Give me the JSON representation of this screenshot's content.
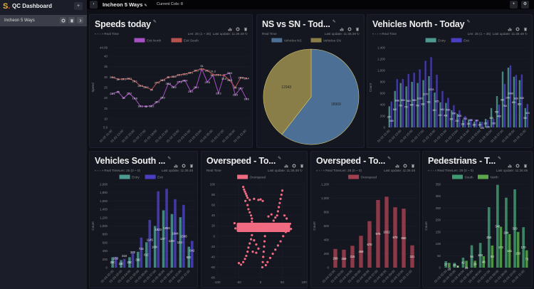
{
  "app": {
    "logo": "S.",
    "title": "QC Dashboard",
    "add": "+"
  },
  "sidebar": {
    "items": [
      {
        "label": "Incheon 5 Ways"
      }
    ]
  },
  "topbar": {
    "title": "Incheon 5 Ways",
    "cols": "Current Cols: 8",
    "back": "‹",
    "add": "+",
    "settings": "⚙"
  },
  "panels": [
    {
      "id": "p0",
      "title": "Speeds today",
      "nav": "«  ‹  ›  »  Real Time",
      "len": "Len: 25 (1 ~ 25)",
      "update": "Last update: 11:26:48 ↻"
    },
    {
      "id": "p1",
      "title": "NS vs SN - Tod...",
      "nav": "Real Time",
      "len": "",
      "update": "Last update: 11:26:48 ↻"
    },
    {
      "id": "p2",
      "title": "Vehicles North - Today",
      "nav": "«  ‹  ›  »  Real Time",
      "len": "Len: 25 (1 ~ 25)",
      "update": "Last update: 11:26:48 ↻"
    },
    {
      "id": "p3",
      "title": "Vehicles South ...",
      "nav": "«  ‹  ›  »  Real TimeLen: 25 (0 ~ 0)",
      "len": "",
      "update": "Last update: 11:26:48"
    },
    {
      "id": "p4",
      "title": "Overspeed - To...",
      "nav": "Real Time",
      "len": "",
      "update": "Last update: 11:26:48 ↻"
    },
    {
      "id": "p5",
      "title": "Overspeed - To...",
      "nav": "«  ‹  ›  »  Real TimeLen: 25 (0 ~ 0)",
      "len": "",
      "update": "Last update: 11:26:48"
    },
    {
      "id": "p6",
      "title": "Pedestrians - T...",
      "nav": "«  ‹  ›  »  Real TimeLen: 25 (0 ~ 0)",
      "len": "",
      "update": "Last update: 11:26:48"
    }
  ],
  "chart_data": [
    {
      "type": "line",
      "ylabel": "Speed",
      "yticks": [
        5.9,
        10,
        15,
        20,
        25,
        30,
        35,
        40,
        44.09
      ],
      "ylim": [
        5.9,
        44.09
      ],
      "xlabels": [
        "01-02 11:00",
        "01-02 13:00",
        "01-02 15:00",
        "01-02 17:00",
        "01-02 19:00",
        "01-02 21:00",
        "01-02 23:00",
        "01-03 01:00",
        "01-03 03:00",
        "01-03 05:00",
        "01-03 07:00",
        "01-03 09:00",
        "01-03 11:00"
      ],
      "series": [
        {
          "name": "Exit North",
          "color": "#a650c2",
          "values": [
            22.1,
            23.0,
            20.0,
            22.2,
            19.8,
            16.1,
            16.0,
            16.2,
            18.1,
            20.2,
            26.9,
            25.2,
            27.8,
            28.4,
            23.2,
            25.1,
            33.9,
            27.6,
            30.9,
            22.3,
            31.0,
            31.9,
            21.5,
            24.7,
            19.6
          ]
        },
        {
          "name": "Exit South",
          "color": "#b8524f",
          "values": [
            29.9,
            29.0,
            29.1,
            29.3,
            28.1,
            25.9,
            25.2,
            24.0,
            27.4,
            28.5,
            30.0,
            30.2,
            31.1,
            31.5,
            32.1,
            33.2,
            34.0,
            33.1,
            31.3,
            31.1,
            30.8,
            28.5,
            25.0,
            29.8,
            29.4
          ]
        }
      ]
    },
    {
      "type": "pie",
      "labels": [
        "Vehicles NS",
        "Vehicles SN"
      ],
      "values": [
        18909,
        12343
      ],
      "colors": [
        "#4b6f95",
        "#8a7e48"
      ]
    },
    {
      "type": "bar",
      "ylabel": "Count",
      "yticks": [
        0,
        200,
        400,
        600,
        800,
        1000,
        1200,
        1400
      ],
      "ylim": [
        0,
        1400
      ],
      "xlabels": [
        "01-02 11:00",
        "01-02 13:00",
        "01-02 15:00",
        "01-02 17:00",
        "01-02 19:00",
        "01-02 21:00",
        "01-02 23:00",
        "01-03 01:00",
        "01-03 03:00",
        "01-03 05:00",
        "01-03 07:00",
        "01-03 09:00",
        "01-03 11:00"
      ],
      "series": [
        {
          "name": "Entry",
          "color": "#4f9a90",
          "values": [
            370,
            640,
            780,
            720,
            800,
            780,
            830,
            900,
            611,
            441,
            430,
            300,
            240,
            130,
            140,
            100,
            100,
            150,
            340,
            550,
            980,
            1050,
            890,
            830,
            340
          ]
        },
        {
          "name": "Exit",
          "color": "#4a3fc0",
          "values": [
            455,
            848,
            850,
            940,
            960,
            1020,
            1170,
            1233,
            925,
            641,
            520,
            390,
            300,
            200,
            150,
            140,
            100,
            130,
            150,
            400,
            764,
            1090,
            920,
            930,
            410
          ]
        }
      ]
    },
    {
      "type": "bar",
      "ylabel": "Count",
      "yticks": [
        0,
        200,
        400,
        600,
        800,
        1000,
        1200,
        1400,
        1600,
        1800,
        2000
      ],
      "ylim": [
        0,
        2000
      ],
      "xlabels": [
        "01-03 02:00",
        "01-03 03:00",
        "01-03 04:00",
        "01-03 05:00",
        "01-03 06:00",
        "01-03 07:00",
        "01-03 08:00",
        "01-03 09:00",
        "01-03 10:00",
        "01-03 11:00"
      ],
      "series": [
        {
          "name": "Entry",
          "color": "#4f9a90",
          "values": [
            250,
            180,
            250,
            380,
            610,
            1000,
            1377,
            1288,
            1210,
            503
          ]
        },
        {
          "name": "Exit",
          "color": "#4a3fc0",
          "values": [
            260,
            210,
            370,
            722,
            1145,
            1833,
            1893,
            1644,
            1508,
            642
          ]
        }
      ]
    },
    {
      "type": "scatter",
      "xticks": [
        -100,
        -50,
        0,
        50,
        100
      ],
      "yticks": [
        -80,
        -60,
        -40,
        -20,
        0,
        20,
        40,
        60,
        80,
        100
      ],
      "xlim": [
        -100,
        100
      ],
      "ylim": [
        -80,
        100
      ],
      "series": [
        {
          "name": "Overspeed",
          "color": "#f06b82",
          "band": {
            "x": [
              -55,
              68
            ],
            "y": [
              8,
              26
            ]
          },
          "points": [
            [
              -40,
              95
            ],
            [
              -38,
              90
            ],
            [
              -36,
              86
            ],
            [
              -34,
              82
            ],
            [
              -32,
              78
            ],
            [
              -30,
              74
            ],
            [
              -25,
              70
            ],
            [
              -15,
              72
            ],
            [
              -5,
              70
            ],
            [
              0,
              71
            ],
            [
              5,
              68
            ],
            [
              -35,
              68
            ],
            [
              -30,
              60
            ],
            [
              -28,
              52
            ],
            [
              -25,
              46
            ],
            [
              -22,
              40
            ],
            [
              -20,
              34
            ],
            [
              -20,
              28
            ],
            [
              50,
              88
            ],
            [
              48,
              80
            ],
            [
              46,
              72
            ],
            [
              44,
              64
            ],
            [
              42,
              56
            ],
            [
              40,
              48
            ],
            [
              38,
              40
            ],
            [
              34,
              36
            ],
            [
              30,
              30
            ],
            [
              55,
              40
            ],
            [
              60,
              34
            ],
            [
              25,
              42
            ],
            [
              18,
              38
            ],
            [
              -20,
              2
            ],
            [
              -22,
              -6
            ],
            [
              -25,
              -14
            ],
            [
              -28,
              -22
            ],
            [
              -30,
              -30
            ],
            [
              -33,
              -38
            ],
            [
              -36,
              -44
            ],
            [
              -40,
              -50
            ],
            [
              -45,
              -55
            ],
            [
              -50,
              -52
            ],
            [
              -15,
              -8
            ],
            [
              -10,
              -16
            ],
            [
              -5,
              -24
            ],
            [
              -10,
              -32
            ],
            [
              -18,
              -30
            ],
            [
              10,
              20
            ],
            [
              10,
              10
            ],
            [
              10,
              0
            ],
            [
              9,
              -10
            ],
            [
              8,
              -20
            ],
            [
              7,
              -30
            ],
            [
              6,
              -40
            ],
            [
              5,
              -50
            ],
            [
              4,
              -60
            ],
            [
              58,
              8
            ],
            [
              52,
              0
            ],
            [
              46,
              -10
            ],
            [
              40,
              -18
            ],
            [
              34,
              -26
            ],
            [
              28,
              -34
            ],
            [
              22,
              -42
            ],
            [
              16,
              -50
            ],
            [
              12,
              -56
            ],
            [
              -60,
              25
            ],
            [
              -58,
              15
            ],
            [
              68,
              24
            ],
            [
              70,
              14
            ]
          ]
        }
      ]
    },
    {
      "type": "bar",
      "ylabel": "Count",
      "yticks": [
        0,
        200,
        400,
        600,
        800,
        1000,
        1200
      ],
      "ylim": [
        0,
        1200
      ],
      "xlabels": [
        "01-03 02:00",
        "01-03 03:00",
        "01-03 04:00",
        "01-03 05:00",
        "01-03 06:00",
        "01-03 07:00",
        "01-03 08:00",
        "01-03 09:00",
        "01-03 10:00",
        "01-03 11:00"
      ],
      "series": [
        {
          "name": "Overspeed",
          "color": "#a2404f",
          "values": [
            269,
            259,
            315,
            459,
            670,
            975,
            1022,
            870,
            850,
            321
          ]
        }
      ]
    },
    {
      "type": "bar",
      "ylabel": "Count",
      "yticks": [
        0,
        50,
        100,
        150,
        200,
        250,
        300,
        350
      ],
      "ylim": [
        0,
        350
      ],
      "xlabels": [
        "01-03 02:00",
        "01-03 03:00",
        "01-03 04:00",
        "01-03 05:00",
        "01-03 06:00",
        "01-03 07:00",
        "01-03 08:00",
        "01-03 09:00",
        "01-03 10:00",
        "01-03 11:00"
      ],
      "series": [
        {
          "name": "South",
          "color": "#3f9a72",
          "values": [
            27,
            20,
            42,
            94,
            104,
            254,
            348,
            294,
            329,
            170
          ]
        },
        {
          "name": "North",
          "color": "#5aa84b",
          "values": [
            20,
            8,
            29,
            29,
            48,
            93,
            172,
            141,
            150,
            73
          ]
        }
      ]
    }
  ]
}
